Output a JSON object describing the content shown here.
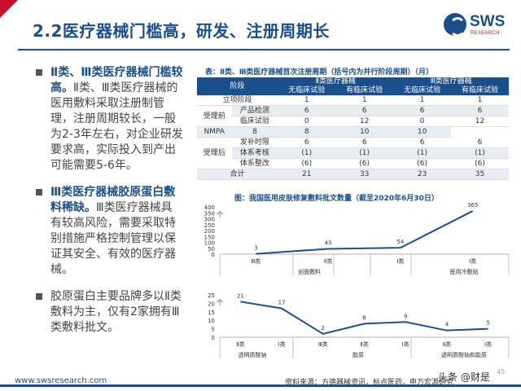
{
  "header": {
    "title": "2.2医疗器械门槛高，研发、注册周期长",
    "logo": "SWS",
    "logo_sub": "RESEARCH"
  },
  "left": {
    "b1_bold": "Ⅱ类、Ⅲ类医疗器械门槛较高。",
    "b1_rest": "Ⅱ类、Ⅲ类医疗器械的医用敷料采取注册制管理，注册周期较长，一般为2-3年左右，对企业研发要求高，实际投入到产出可能需要5-6年。",
    "b2_bold": "Ⅲ类医疗器械胶原蛋白敷料稀缺。",
    "b2_rest": "Ⅲ类医疗器械具有较高风险，需要采取特别措施严格控制管理以保证其安全、有效的医疗器械。",
    "b3": "胶原蛋白主要品牌多以Ⅱ类敷料为主，仅有2家拥有Ⅲ类敷料批文。"
  },
  "table": {
    "caption": "表：Ⅱ类、Ⅲ类医疗器械首次注册周期（括号内为并行阶段周期）（月）",
    "h_stage": "阶段",
    "h_c2": "Ⅱ类医疗器械",
    "h_c3": "Ⅲ类医疗器械",
    "h_no": "无临床试验",
    "h_yes": "有临床试验",
    "rows": [
      {
        "g": "",
        "s": "立项阶段",
        "v": [
          "1",
          "1",
          "1",
          "1"
        ]
      },
      {
        "g": "受理前",
        "s": "产品检测",
        "v": [
          "6",
          "6",
          "6",
          "6"
        ]
      },
      {
        "g": "",
        "s": "临床试验",
        "v": [
          "0",
          "12",
          "0",
          "12"
        ]
      },
      {
        "g": "",
        "s": "NMPA",
        "v": [
          "8",
          "8",
          "10",
          "10"
        ]
      },
      {
        "g": "受理后",
        "s": "发补时限",
        "v": [
          "6",
          "6",
          "6",
          "6"
        ]
      },
      {
        "g": "",
        "s": "体系考核",
        "v": [
          "(1)",
          "(1)",
          "(1)",
          "(1)"
        ]
      },
      {
        "g": "",
        "s": "体系整改",
        "v": [
          "(6)",
          "(6)",
          "(6)",
          "(6)"
        ]
      },
      {
        "g": "合计",
        "s": "",
        "v": [
          "21",
          "33",
          "23",
          "35"
        ]
      }
    ]
  },
  "chart_caption": "图：我国医用皮肤修复敷料批文数量（截至2020年6月30日）",
  "chart_data": [
    {
      "type": "line",
      "unit": "个",
      "ylim": [
        0,
        400
      ],
      "yticks": [
        "0",
        "50",
        "100",
        "150",
        "200",
        "250",
        "300",
        "350",
        "400"
      ],
      "categories": [
        "Ⅲ类",
        "Ⅱ类",
        "Ⅰ类",
        "Ⅰ类"
      ],
      "groups": [
        "创面敷料",
        "",
        "医用冷敷贴"
      ],
      "values": [
        3,
        45,
        54,
        365
      ]
    },
    {
      "type": "line",
      "unit": "个",
      "ylim": [
        0,
        25
      ],
      "yticks": [
        "0",
        "5",
        "10",
        "15",
        "20",
        "25"
      ],
      "categories": [
        "Ⅱ类",
        "Ⅰ类",
        "Ⅲ类",
        "Ⅱ类",
        "Ⅰ类",
        "Ⅱ类",
        "Ⅰ类"
      ],
      "groups": [
        "透明质酸钠",
        "胶原",
        "透明质酸钠和胶原"
      ],
      "values": [
        21,
        17,
        2,
        8,
        9,
        4,
        5
      ]
    }
  ],
  "footer": {
    "url": "www.swsresearch.com",
    "source": "资料来源：方德器械资讯，标点医药，申万宏源研究",
    "page": "45",
    "watermark": "头条 @财是"
  }
}
